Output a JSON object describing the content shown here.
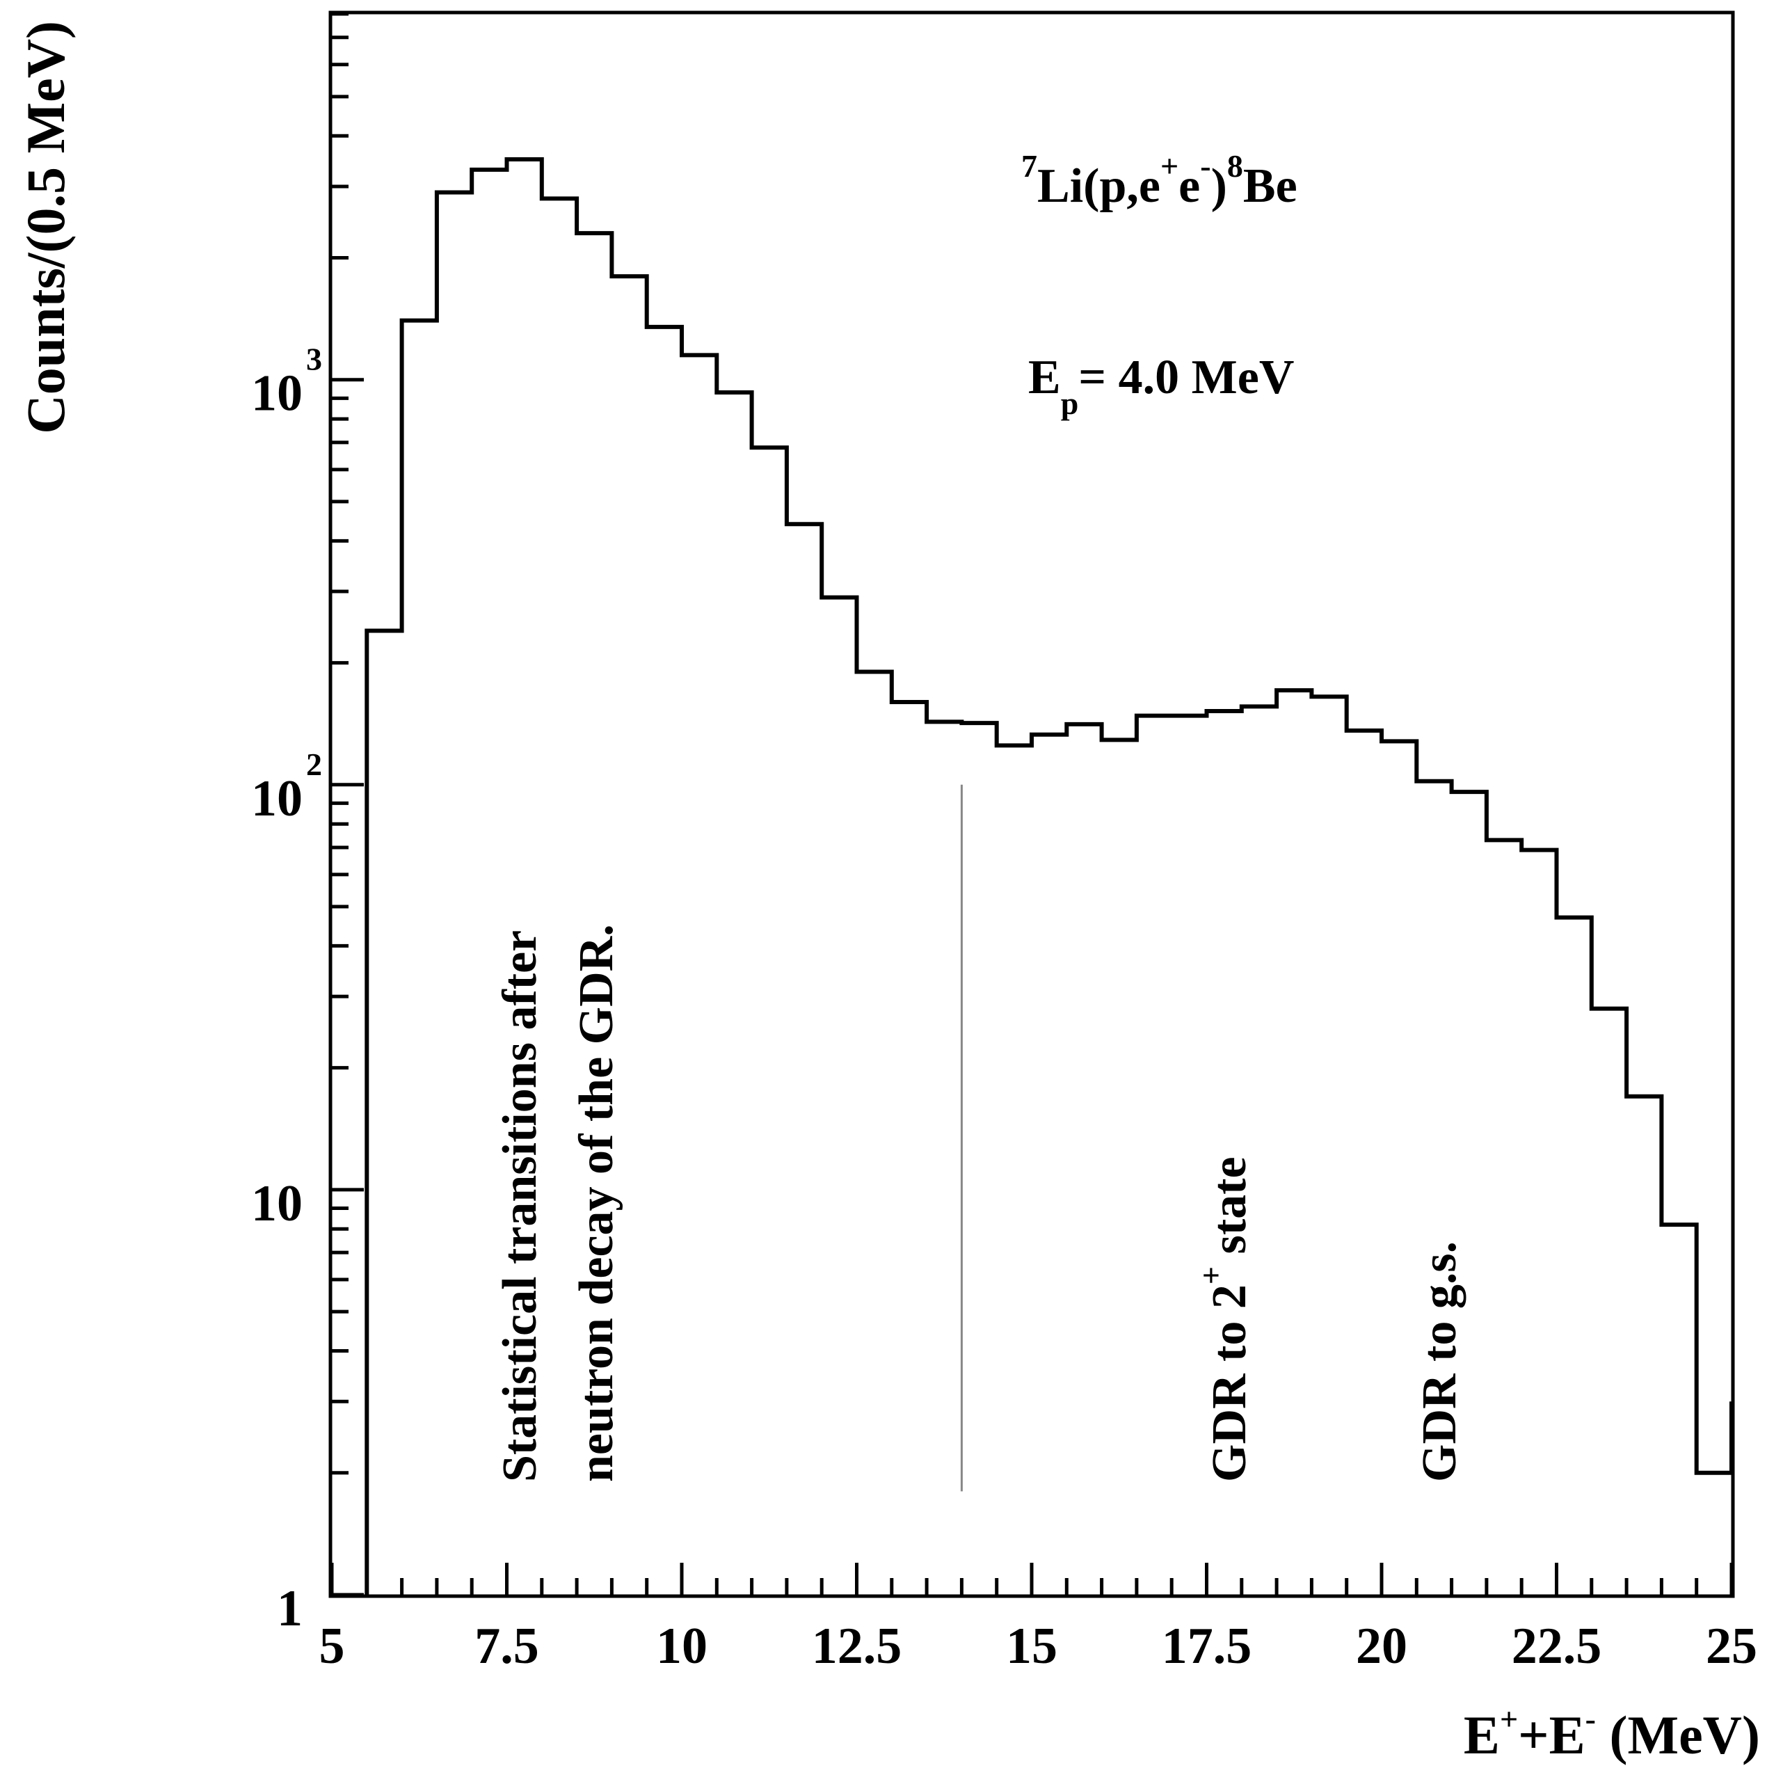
{
  "chart_data": {
    "type": "histogram",
    "scale": {
      "x": "linear",
      "y": "log"
    },
    "xlim": [
      5,
      25
    ],
    "ylim": [
      1,
      8000
    ],
    "xlabel": {
      "base1": "E",
      "sup1": "+",
      "mid": "+E",
      "sup2": "-",
      "rest": " (MeV)"
    },
    "ylabel": "Counts/(0.5 MeV)",
    "x_ticks": [
      {
        "value": 5,
        "label": "5"
      },
      {
        "value": 7.5,
        "label": "7.5"
      },
      {
        "value": 10,
        "label": "10"
      },
      {
        "value": 12.5,
        "label": "12.5"
      },
      {
        "value": 15,
        "label": "15"
      },
      {
        "value": 17.5,
        "label": "17.5"
      },
      {
        "value": 20,
        "label": "20"
      },
      {
        "value": 22.5,
        "label": "22.5"
      },
      {
        "value": 25,
        "label": "25"
      }
    ],
    "y_ticks": [
      {
        "value": 1,
        "base": "1",
        "exp": ""
      },
      {
        "value": 10,
        "base": "10",
        "exp": ""
      },
      {
        "value": 100,
        "base": "10",
        "exp": "2"
      },
      {
        "value": 1000,
        "base": "10",
        "exp": "3"
      }
    ],
    "bin_edges": [
      5.5,
      6,
      6.5,
      7,
      7.5,
      8,
      8.5,
      9,
      9.5,
      10,
      10.5,
      11,
      11.5,
      12,
      12.5,
      13,
      13.5,
      14,
      14.5,
      15,
      15.5,
      16,
      16.5,
      17,
      17.5,
      18,
      18.5,
      19,
      19.5,
      20,
      20.5,
      21,
      21.5,
      22,
      22.5,
      23,
      23.5,
      24,
      24.5,
      25
    ],
    "counts": [
      240,
      1400,
      2900,
      3300,
      3500,
      2800,
      2300,
      1800,
      1350,
      1150,
      930,
      680,
      440,
      290,
      190,
      160,
      143,
      142,
      125,
      133,
      141,
      129,
      148,
      148,
      152,
      156,
      171,
      165,
      136,
      128,
      102,
      96,
      73,
      69,
      47,
      28,
      17,
      8.2,
      2,
      3
    ],
    "vertical_line_x": 14,
    "vertical_line_range": [
      1.8,
      100
    ],
    "annotations": {
      "reaction": {
        "pre": "7",
        "a": "Li(p,e",
        "s1": "+",
        "b": "e",
        "s2": "-",
        "c": ")",
        "s3": "8",
        "d": "Be"
      },
      "energy": {
        "base": "E",
        "sub": "p",
        "rest": "= 4.0 MeV"
      },
      "statistical_line1": "Statistical transitions after",
      "statistical_line2": "neutron decay of the GDR.",
      "gdr_2plus": {
        "text": "GDR to 2",
        "sup": "+",
        "rest": " state"
      },
      "gdr_gs": "GDR to g.s."
    }
  }
}
